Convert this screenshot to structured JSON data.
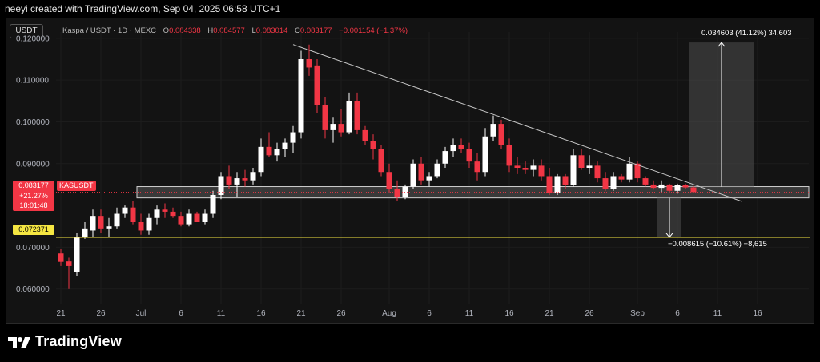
{
  "header": {
    "text": "neeyi created with TradingView.com, Sep 04, 2025 06:58 UTC+1"
  },
  "symbol_button": "USDT",
  "legend": {
    "title": "Kaspa / USDT · 1D · MEXC",
    "o_label": "O",
    "o": "0.084338",
    "h_label": "H",
    "h": "0.084577",
    "l_label": "L",
    "l": "0.083014",
    "c_label": "C",
    "c": "0.083177",
    "change": "−0.001154 (−1.37%)"
  },
  "price_tag": {
    "price": "0.083177",
    "symbol": "KASUSDT",
    "change": "+21.27%",
    "countdown": "18:01:48",
    "color": "#f23645"
  },
  "target_tag": {
    "price": "0.072371",
    "color": "#f5e642"
  },
  "measure_up": "0.034603 (41.12%) 34,603",
  "measure_down": "−0.008615 (−10.61%) −8,615",
  "logo_text": "TradingView",
  "colors": {
    "up": "#ffffff",
    "down": "#f23645",
    "trendline": "#c8c8c8",
    "zone": "#d0d0d0"
  },
  "chart_data": {
    "type": "candlestick",
    "title": "Kaspa / USDT · 1D · MEXC",
    "ylim": [
      0.0565,
      0.1215
    ],
    "y_ticks": [
      "0.120000",
      "0.110000",
      "0.100000",
      "0.090000",
      "0.070000",
      "0.060000"
    ],
    "y_tick_values": [
      0.12,
      0.11,
      0.1,
      0.09,
      0.07,
      0.06
    ],
    "x_ticks": [
      {
        "label": "21",
        "day": 0
      },
      {
        "label": "26",
        "day": 5
      },
      {
        "label": "Jul",
        "day": 10
      },
      {
        "label": "6",
        "day": 15
      },
      {
        "label": "11",
        "day": 20
      },
      {
        "label": "16",
        "day": 25
      },
      {
        "label": "21",
        "day": 30
      },
      {
        "label": "26",
        "day": 35
      },
      {
        "label": "Aug",
        "day": 41
      },
      {
        "label": "6",
        "day": 46
      },
      {
        "label": "11",
        "day": 51
      },
      {
        "label": "16",
        "day": 56
      },
      {
        "label": "21",
        "day": 61
      },
      {
        "label": "26",
        "day": 66
      },
      {
        "label": "Sep",
        "day": 72
      },
      {
        "label": "6",
        "day": 77
      },
      {
        "label": "11",
        "day": 82
      },
      {
        "label": "16",
        "day": 87
      }
    ],
    "x_day_range": [
      -1,
      90
    ],
    "candles": [
      [
        0.0685,
        0.0696,
        0.0655,
        0.0665
      ],
      [
        0.0666,
        0.0675,
        0.06,
        0.0655
      ],
      [
        0.064,
        0.0735,
        0.0632,
        0.0725
      ],
      [
        0.0725,
        0.076,
        0.072,
        0.0745
      ],
      [
        0.074,
        0.079,
        0.0725,
        0.0775
      ],
      [
        0.0775,
        0.079,
        0.0735,
        0.0745
      ],
      [
        0.0745,
        0.077,
        0.0725,
        0.075
      ],
      [
        0.075,
        0.0795,
        0.0745,
        0.078
      ],
      [
        0.078,
        0.08,
        0.077,
        0.0795
      ],
      [
        0.0795,
        0.081,
        0.0755,
        0.076
      ],
      [
        0.076,
        0.078,
        0.073,
        0.074
      ],
      [
        0.074,
        0.078,
        0.073,
        0.077
      ],
      [
        0.077,
        0.08,
        0.0755,
        0.079
      ],
      [
        0.079,
        0.0805,
        0.077,
        0.0785
      ],
      [
        0.0785,
        0.0795,
        0.077,
        0.0775
      ],
      [
        0.0775,
        0.0785,
        0.075,
        0.0755
      ],
      [
        0.0755,
        0.079,
        0.075,
        0.078
      ],
      [
        0.078,
        0.0785,
        0.076,
        0.076
      ],
      [
        0.076,
        0.079,
        0.0755,
        0.078
      ],
      [
        0.078,
        0.0835,
        0.077,
        0.0825
      ],
      [
        0.0825,
        0.088,
        0.0815,
        0.087
      ],
      [
        0.087,
        0.0895,
        0.084,
        0.085
      ],
      [
        0.085,
        0.088,
        0.082,
        0.0865
      ],
      [
        0.0865,
        0.0885,
        0.0845,
        0.086
      ],
      [
        0.086,
        0.089,
        0.085,
        0.088
      ],
      [
        0.088,
        0.096,
        0.087,
        0.094
      ],
      [
        0.094,
        0.0975,
        0.0915,
        0.092
      ],
      [
        0.092,
        0.095,
        0.0905,
        0.0935
      ],
      [
        0.0935,
        0.096,
        0.0915,
        0.095
      ],
      [
        0.095,
        0.099,
        0.0925,
        0.0975
      ],
      [
        0.0975,
        0.117,
        0.096,
        0.115
      ],
      [
        0.115,
        0.1185,
        0.111,
        0.113
      ],
      [
        0.1135,
        0.115,
        0.102,
        0.104
      ],
      [
        0.104,
        0.106,
        0.096,
        0.098
      ],
      [
        0.098,
        0.101,
        0.095,
        0.0995
      ],
      [
        0.0995,
        0.103,
        0.0965,
        0.0975
      ],
      [
        0.0975,
        0.107,
        0.097,
        0.105
      ],
      [
        0.105,
        0.107,
        0.097,
        0.098
      ],
      [
        0.098,
        0.099,
        0.0945,
        0.0955
      ],
      [
        0.0955,
        0.097,
        0.091,
        0.0935
      ],
      [
        0.0935,
        0.0945,
        0.087,
        0.088
      ],
      [
        0.088,
        0.09,
        0.083,
        0.084
      ],
      [
        0.084,
        0.086,
        0.081,
        0.082
      ],
      [
        0.082,
        0.085,
        0.0815,
        0.0845
      ],
      [
        0.0845,
        0.091,
        0.084,
        0.09
      ],
      [
        0.09,
        0.0915,
        0.085,
        0.086
      ],
      [
        0.086,
        0.088,
        0.0845,
        0.087
      ],
      [
        0.087,
        0.091,
        0.0865,
        0.09
      ],
      [
        0.09,
        0.094,
        0.089,
        0.093
      ],
      [
        0.093,
        0.096,
        0.0915,
        0.0945
      ],
      [
        0.0945,
        0.096,
        0.0925,
        0.0935
      ],
      [
        0.0935,
        0.095,
        0.089,
        0.0905
      ],
      [
        0.0905,
        0.0925,
        0.086,
        0.088
      ],
      [
        0.088,
        0.0985,
        0.087,
        0.0965
      ],
      [
        0.0965,
        0.1015,
        0.0955,
        0.0995
      ],
      [
        0.0995,
        0.1005,
        0.0935,
        0.0945
      ],
      [
        0.0945,
        0.096,
        0.088,
        0.0895
      ],
      [
        0.0895,
        0.0915,
        0.0875,
        0.089
      ],
      [
        0.089,
        0.0905,
        0.0875,
        0.0885
      ],
      [
        0.0885,
        0.091,
        0.087,
        0.0895
      ],
      [
        0.0895,
        0.091,
        0.086,
        0.087
      ],
      [
        0.087,
        0.089,
        0.0825,
        0.083
      ],
      [
        0.083,
        0.0875,
        0.0825,
        0.087
      ],
      [
        0.087,
        0.0875,
        0.084,
        0.0848
      ],
      [
        0.0848,
        0.0935,
        0.0845,
        0.092
      ],
      [
        0.092,
        0.0935,
        0.0885,
        0.089
      ],
      [
        0.089,
        0.092,
        0.0875,
        0.0895
      ],
      [
        0.0895,
        0.0905,
        0.0855,
        0.0865
      ],
      [
        0.0865,
        0.088,
        0.0835,
        0.084
      ],
      [
        0.084,
        0.088,
        0.0835,
        0.087
      ],
      [
        0.087,
        0.0875,
        0.0855,
        0.0862
      ],
      [
        0.0862,
        0.0915,
        0.0855,
        0.09
      ],
      [
        0.09,
        0.0905,
        0.0855,
        0.0865
      ],
      [
        0.0865,
        0.087,
        0.0845,
        0.085
      ],
      [
        0.085,
        0.086,
        0.0838,
        0.0842
      ],
      [
        0.0842,
        0.086,
        0.083,
        0.085
      ],
      [
        0.085,
        0.0852,
        0.083,
        0.0835
      ],
      [
        0.0835,
        0.0852,
        0.0828,
        0.0848
      ],
      [
        0.0848,
        0.0852,
        0.084,
        0.0843
      ],
      [
        0.0843,
        0.0846,
        0.083,
        0.0832
      ]
    ],
    "candle_day_offset": 0,
    "trendline": {
      "from": [
        29,
        0.1185
      ],
      "to": [
        85,
        0.081
      ]
    },
    "support_zone": {
      "y_top": 0.0845,
      "y_bottom": 0.0818,
      "day_from": 7.5,
      "day_to": 90
    },
    "target_line": 0.072371,
    "measure_up_box": {
      "day_from": 78.5,
      "day_to": 86.5,
      "y_from": 0.0845,
      "y_to": 0.119
    },
    "measure_down_box": {
      "day_from": 74.5,
      "day_to": 77.5,
      "y_from": 0.0818,
      "y_to": 0.0724
    }
  }
}
